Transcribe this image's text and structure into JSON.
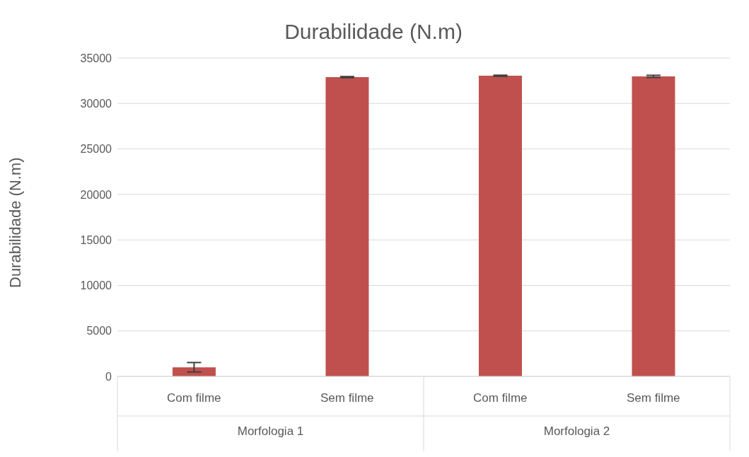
{
  "chart_data": {
    "type": "bar",
    "title": "Durabilidade (N.m)",
    "ylabel": "Durabilidade (N.m)",
    "categories": [
      "Com filme",
      "Sem filme",
      "Com filme",
      "Sem filme"
    ],
    "values": [
      1000,
      32900,
      33050,
      32980
    ],
    "errors": [
      520,
      60,
      60,
      120
    ],
    "color": "#c0504d",
    "ylim": [
      0,
      35000
    ],
    "yticks": [
      0,
      5000,
      10000,
      15000,
      20000,
      25000,
      30000,
      35000
    ],
    "grid": "y",
    "legend": false,
    "annotations": [
      "Morfologia 1",
      "Morfologia 2"
    ]
  }
}
